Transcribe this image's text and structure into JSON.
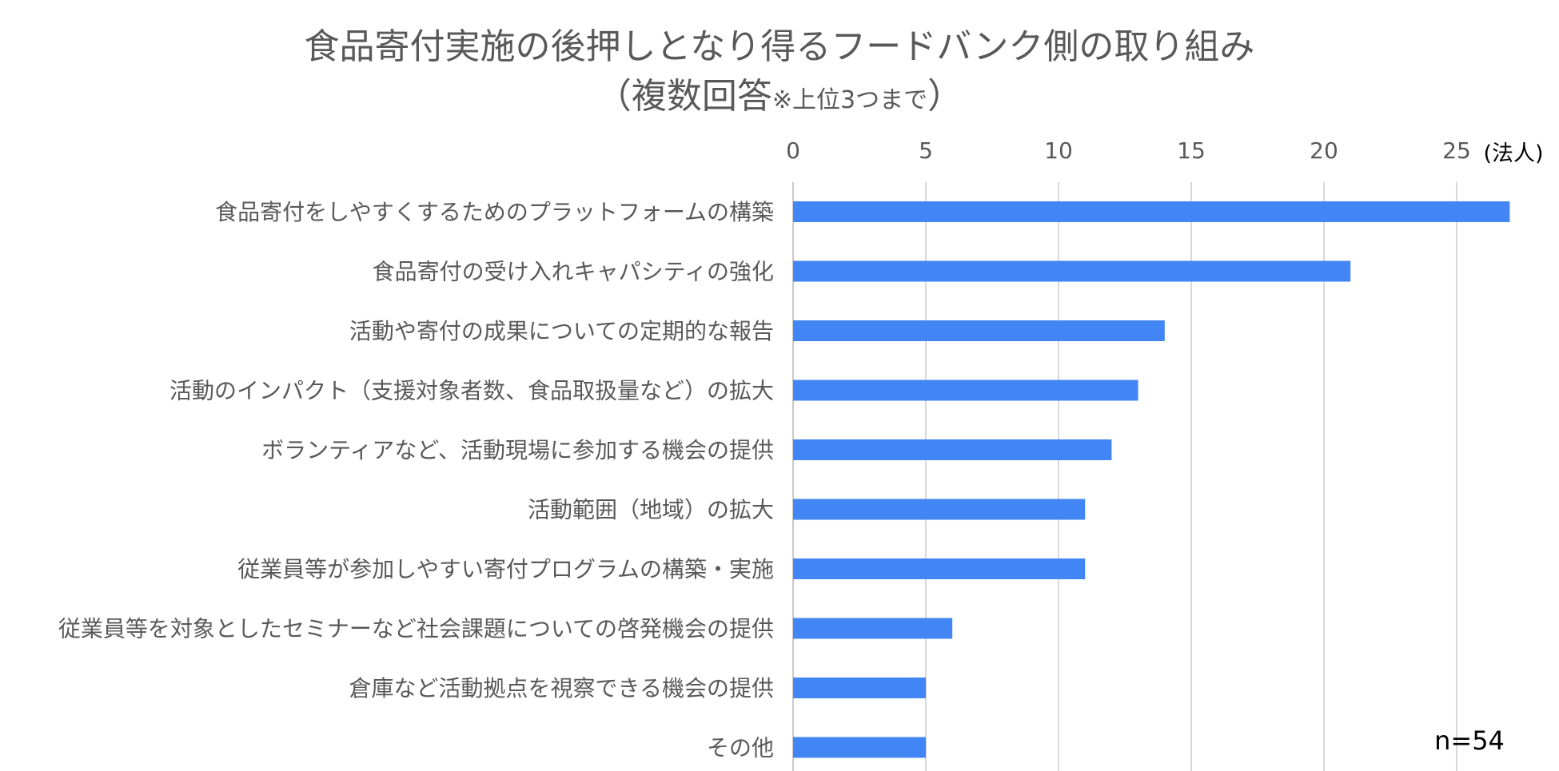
{
  "chart_data": {
    "type": "bar",
    "orientation": "horizontal",
    "title": "食品寄付実施の後押しとなり得るフードバンク側の取り組み",
    "subtitle_open": "（",
    "subtitle_main": "複数回答",
    "subtitle_note": "※上位3つまで",
    "subtitle_close": "）",
    "unit_label": "(法人)",
    "sample_note": "n=54",
    "categories": [
      "食品寄付をしやすくするためのプラットフォームの構築",
      "食品寄付の受け入れキャパシティの強化",
      "活動や寄付の成果についての定期的な報告",
      "活動のインパクト（支援対象者数、食品取扱量など）の拡大",
      "ボランティアなど、活動現場に参加する機会の提供",
      "活動範囲（地域）の拡大",
      "従業員等が参加しやすい寄付プログラムの構築・実施",
      "従業員等を対象としたセミナーなど社会課題についての啓発機会の提供",
      "倉庫など活動拠点を視察できる機会の提供",
      "その他"
    ],
    "values": [
      27,
      21,
      14,
      13,
      12,
      11,
      11,
      6,
      5,
      5
    ],
    "xlim": [
      0,
      27
    ],
    "xticks": [
      0,
      5,
      10,
      15,
      20,
      25
    ],
    "xaxis_position": "top",
    "grid": true,
    "legend": "none",
    "colors": {
      "bar": "#4285F4",
      "grid": "#D9D9D9",
      "text": "#595959",
      "note": "#000000"
    }
  }
}
